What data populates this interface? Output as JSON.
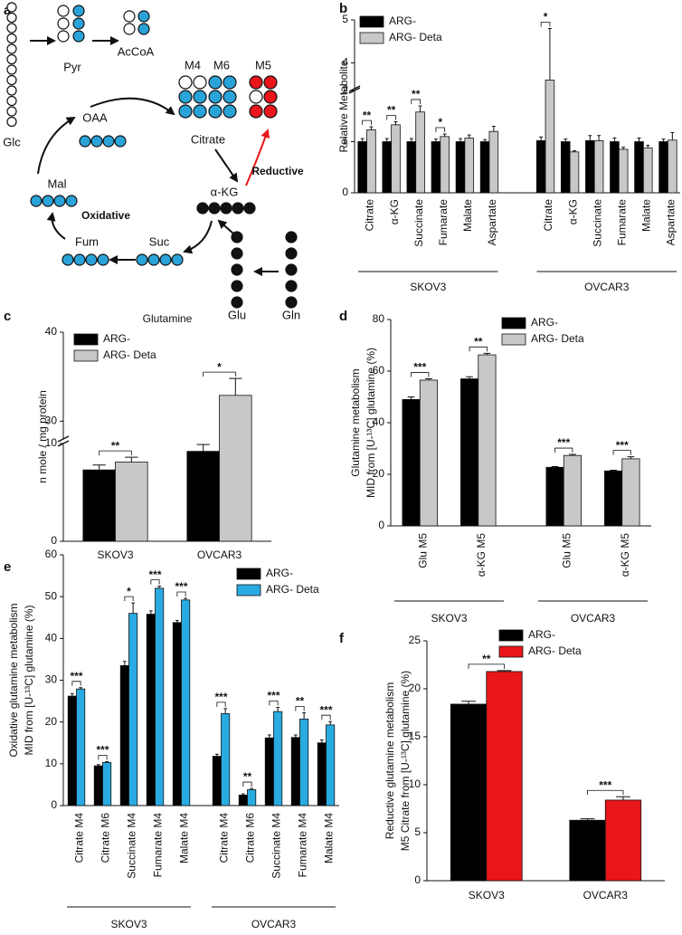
{
  "diagram": {
    "panel": "a",
    "nodes": [
      "Glc",
      "Pyr",
      "AcCoA",
      "Citrate",
      "OAA",
      "Mal",
      "Fum",
      "Suc",
      "α-KG",
      "Glu",
      "Gln"
    ],
    "isotopologues": [
      "M4",
      "M6",
      "M5"
    ],
    "pathways": [
      "Reductive",
      "Oxidative"
    ]
  },
  "chart_data": [
    {
      "type": "bar",
      "panel": "b",
      "ylabel": [
        "Relative Metabolite"
      ],
      "categories": [
        "Citrate",
        "α-KG",
        "Succinate",
        "Fumarate",
        "Malate",
        "Aspartate",
        "Citrate",
        "α-KG",
        "Succinate",
        "Fumarate",
        "Malate",
        "Aspartate"
      ],
      "groups": [
        "SKOV3",
        "OVCAR3"
      ],
      "series": [
        {
          "name": "ARG-",
          "color": "#000000",
          "values": [
            1.0,
            1.0,
            1.0,
            1.0,
            1.0,
            1.0,
            1.02,
            1.0,
            1.02,
            1.0,
            1.0,
            1.0
          ],
          "errors": [
            0.06,
            0.06,
            0.06,
            0.05,
            0.06,
            0.04,
            0.07,
            0.05,
            0.1,
            0.07,
            0.07,
            0.05
          ]
        },
        {
          "name": "ARG- Deta",
          "color": "#c8c8c8",
          "values": [
            1.23,
            1.33,
            1.58,
            1.1,
            1.07,
            1.2,
            3.6,
            0.8,
            1.02,
            0.85,
            0.88,
            1.03
          ],
          "errors": [
            0.06,
            0.06,
            0.12,
            0.05,
            0.06,
            0.1,
            1.2,
            0.02,
            0.1,
            0.04,
            0.05,
            0.15
          ]
        }
      ],
      "significance": [
        "**",
        "**",
        "**",
        "*",
        null,
        null,
        "*",
        null,
        null,
        null,
        null,
        null
      ],
      "ylim": [
        0,
        5
      ],
      "ybreak": [
        2,
        3.4
      ],
      "yticks": [
        0,
        1,
        2,
        4,
        5
      ]
    },
    {
      "type": "bar",
      "panel": "c",
      "title": "Glutamine",
      "ylabel": [
        "n mole / mg protein"
      ],
      "categories": [
        "SKOV3",
        "OVCAR3"
      ],
      "series": [
        {
          "name": "ARG-",
          "color": "#000000",
          "values": [
            7.3,
            9.2
          ],
          "errors": [
            0.5,
            0.7
          ]
        },
        {
          "name": "ARG- Deta",
          "color": "#c8c8c8",
          "values": [
            8.1,
            32.9
          ],
          "errors": [
            0.5,
            1.9
          ]
        }
      ],
      "significance": [
        "**",
        "*"
      ],
      "ylim": [
        0,
        40
      ],
      "ybreak": [
        10,
        28
      ],
      "yticks": [
        0,
        10,
        30,
        40
      ]
    },
    {
      "type": "bar",
      "panel": "d",
      "ylabel": [
        "Glutamine metabolism",
        "MID from [U-¹³C] glutamine (%)"
      ],
      "categories": [
        "Glu M5",
        "α-KG M5",
        "Glu M5",
        "α-KG M5"
      ],
      "groups": [
        "SKOV3",
        "OVCAR3"
      ],
      "series": [
        {
          "name": "ARG-",
          "color": "#000000",
          "values": [
            49,
            57,
            22.7,
            21.3
          ],
          "errors": [
            1,
            0.8,
            0.3,
            0.3
          ]
        },
        {
          "name": "ARG- Deta",
          "color": "#c8c8c8",
          "values": [
            56.5,
            66.3,
            27.3,
            26
          ],
          "errors": [
            0.5,
            0.6,
            0.4,
            0.8
          ]
        }
      ],
      "significance": [
        "***",
        "**",
        "***",
        "***"
      ],
      "ylim": [
        0,
        80
      ],
      "yticks": [
        0,
        20,
        40,
        60,
        80
      ]
    },
    {
      "type": "bar",
      "panel": "e",
      "ylabel": [
        "Oxidative glutamine metabolism",
        "MID from [U-¹³C] glutamine (%)"
      ],
      "categories": [
        "Citrate M4",
        "Citrate M6",
        "Succinate M4",
        "Fumarate M4",
        "Malate M4",
        "Citrate M4",
        "Citrate M6",
        "Succinate M4",
        "Fumarate M4",
        "Malate M4"
      ],
      "groups": [
        "SKOV3",
        "OVCAR3"
      ],
      "series": [
        {
          "name": "ARG-",
          "color": "#000000",
          "values": [
            26.2,
            9.5,
            33.5,
            45.8,
            43.8,
            11.8,
            2.5,
            16.2,
            16.3,
            15
          ],
          "errors": [
            0.6,
            0.3,
            1,
            0.8,
            0.5,
            0.5,
            0.3,
            0.7,
            0.6,
            0.7
          ]
        },
        {
          "name": "ARG- Deta",
          "color": "#29abe2",
          "values": [
            27.9,
            10.3,
            46,
            52,
            49.2,
            22,
            3.8,
            22.5,
            20.7,
            19.3
          ],
          "errors": [
            0.3,
            0.2,
            2.5,
            0.5,
            0.4,
            1.2,
            0.3,
            1,
            1.5,
            0.8
          ]
        }
      ],
      "significance": [
        "***",
        "***",
        "*",
        "***",
        "***",
        "***",
        "**",
        "***",
        "**",
        "***"
      ],
      "ylim": [
        0,
        60
      ],
      "yticks": [
        0,
        10,
        20,
        30,
        40,
        50,
        60
      ]
    },
    {
      "type": "bar",
      "panel": "f",
      "ylabel": [
        "Reductive glutamine metabolism",
        "M5 Citrate  from [U-¹³C] glutamine (%)"
      ],
      "categories": [
        "SKOV3",
        "OVCAR3"
      ],
      "series": [
        {
          "name": "ARG-",
          "color": "#000000",
          "values": [
            18.4,
            6.3
          ],
          "errors": [
            0.3,
            0.15
          ]
        },
        {
          "name": "ARG- Deta",
          "color": "#e8161b",
          "values": [
            21.8,
            8.4
          ],
          "errors": [
            0.1,
            0.35
          ]
        }
      ],
      "significance": [
        "**",
        "***"
      ],
      "ylim": [
        0,
        25
      ],
      "yticks": [
        0,
        5,
        10,
        15,
        20,
        25
      ]
    }
  ]
}
